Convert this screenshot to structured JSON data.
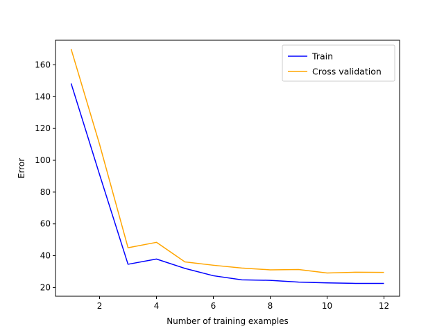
{
  "chart_data": {
    "type": "line",
    "title": "",
    "xlabel": "Number of training examples",
    "ylabel": "Error",
    "xlim": [
      0.45,
      12.55
    ],
    "ylim": [
      14.5,
      175.5
    ],
    "xticks": [
      2,
      4,
      6,
      8,
      10,
      12
    ],
    "yticks": [
      20,
      40,
      60,
      80,
      100,
      120,
      140,
      160
    ],
    "grid": false,
    "legend_position": "upper-right",
    "x": [
      1,
      2,
      3,
      4,
      5,
      6,
      7,
      8,
      9,
      10,
      11,
      12
    ],
    "series": [
      {
        "name": "Train",
        "color": "#0000ff",
        "values": [
          148.3,
          91.0,
          34.6,
          37.9,
          32.0,
          27.4,
          24.8,
          24.5,
          23.4,
          22.9,
          22.6,
          22.6
        ]
      },
      {
        "name": "Cross validation",
        "color": "#ffa500",
        "values": [
          169.9,
          110.0,
          45.0,
          48.4,
          36.1,
          34.0,
          32.2,
          31.1,
          31.3,
          29.1,
          29.6,
          29.5
        ]
      }
    ]
  }
}
